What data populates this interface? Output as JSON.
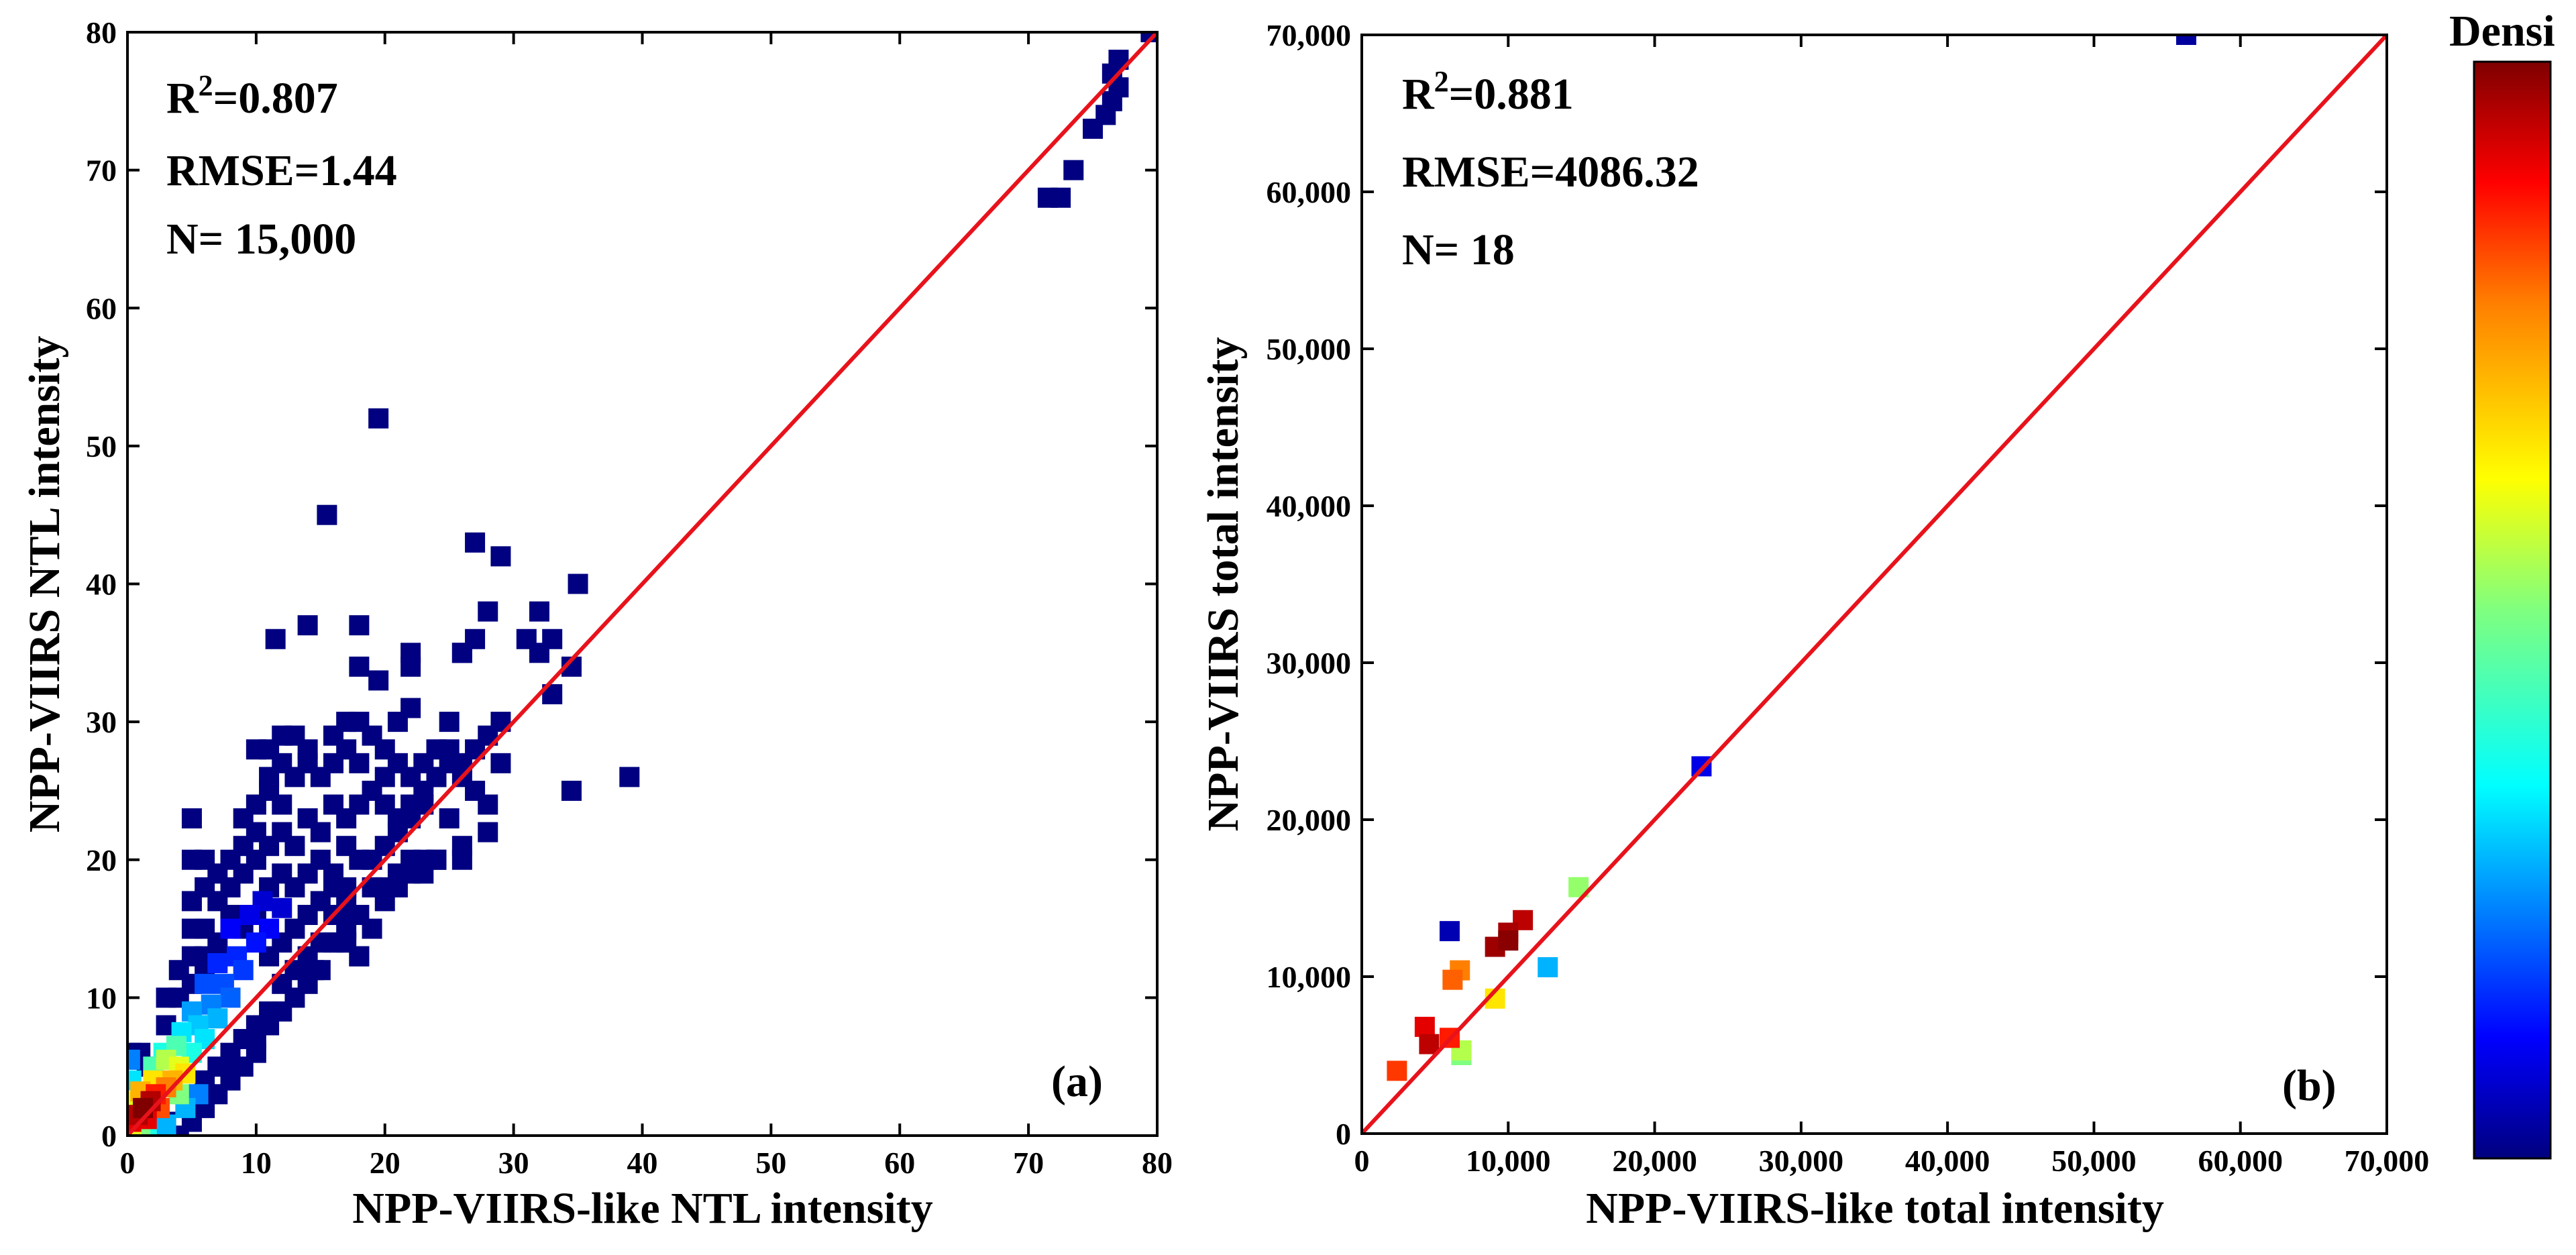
{
  "chart_data": [
    {
      "panel": "(a)",
      "type": "scatter",
      "subtype": "density",
      "xlabel": "NPP-VIIRS-like NTL intensity",
      "ylabel": "NPP-VIIRS NTL intensity",
      "xlim": [
        0,
        80
      ],
      "ylim": [
        0,
        80
      ],
      "xticks": [
        0,
        10,
        20,
        30,
        40,
        50,
        60,
        70,
        80
      ],
      "yticks": [
        0,
        10,
        20,
        30,
        40,
        50,
        60,
        70,
        80
      ],
      "xtick_labels": [
        "0",
        "10",
        "20",
        "30",
        "40",
        "50",
        "60",
        "70",
        "80"
      ],
      "ytick_labels": [
        "0",
        "10",
        "20",
        "30",
        "40",
        "50",
        "60",
        "70",
        "80"
      ],
      "stats": {
        "r2_prefix": "R",
        "r2_sup": "2",
        "r2_value": "=0.807",
        "rmse": "RMSE=1.44",
        "n": "N= 15,000"
      },
      "fit_line": [
        [
          0,
          0
        ],
        [
          80,
          80
        ]
      ],
      "fit_line_color": "#e8121b",
      "points": [
        [
          0.3,
          1,
          0.9
        ],
        [
          0.8,
          1.5,
          0.95
        ],
        [
          1.2,
          2,
          1.0
        ],
        [
          1.5,
          1.2,
          0.9
        ],
        [
          1.8,
          2.5,
          0.95
        ],
        [
          2.2,
          3,
          0.85
        ],
        [
          1,
          3.2,
          0.7
        ],
        [
          0.5,
          2.5,
          0.6
        ],
        [
          2.5,
          2,
          0.8
        ],
        [
          3,
          3.5,
          0.75
        ],
        [
          2,
          4,
          0.65
        ],
        [
          3.5,
          4,
          0.7
        ],
        [
          4,
          5,
          0.6
        ],
        [
          3,
          5.5,
          0.55
        ],
        [
          4.5,
          4.5,
          0.65
        ],
        [
          0.3,
          4,
          0.35
        ],
        [
          0.2,
          5.5,
          0.25
        ],
        [
          0.3,
          0.3,
          0.6
        ],
        [
          1,
          0.5,
          0.5
        ],
        [
          2.8,
          6,
          0.4
        ],
        [
          3.8,
          6.5,
          0.45
        ],
        [
          5,
          6,
          0.4
        ],
        [
          4.2,
          7.5,
          0.35
        ],
        [
          5.5,
          8,
          0.32
        ],
        [
          6,
          7,
          0.35
        ],
        [
          5,
          9,
          0.28
        ],
        [
          6.5,
          9.5,
          0.25
        ],
        [
          7,
          8.5,
          0.3
        ],
        [
          6,
          11,
          0.2
        ],
        [
          7.5,
          11,
          0.2
        ],
        [
          8,
          10,
          0.22
        ],
        [
          7,
          12.5,
          0.16
        ],
        [
          8.5,
          13,
          0.16
        ],
        [
          9,
          12,
          0.18
        ],
        [
          10,
          14,
          0.14
        ],
        [
          8,
          15,
          0.12
        ],
        [
          9.5,
          16,
          0.1
        ],
        [
          11,
          15,
          0.12
        ],
        [
          10.5,
          17,
          0.08
        ],
        [
          12,
          16.5,
          0.08
        ],
        [
          1.5,
          0.3,
          0.4
        ],
        [
          3,
          0.8,
          0.3
        ],
        [
          4.5,
          2,
          0.3
        ],
        [
          5.5,
          3,
          0.25
        ],
        [
          2,
          5,
          0.45
        ],
        [
          4,
          3,
          0.5
        ],
        [
          1,
          0,
          0
        ],
        [
          2,
          0,
          0
        ],
        [
          3,
          1,
          0
        ],
        [
          4,
          0,
          0
        ],
        [
          5,
          1,
          0
        ],
        [
          5,
          2,
          0
        ],
        [
          6,
          2,
          0
        ],
        [
          6,
          4,
          0
        ],
        [
          7,
          3,
          0
        ],
        [
          8,
          4,
          0
        ],
        [
          9,
          5,
          0
        ],
        [
          8,
          6,
          0
        ],
        [
          10,
          6,
          0
        ],
        [
          10,
          7,
          0
        ],
        [
          11,
          8,
          0
        ],
        [
          12,
          9,
          0
        ],
        [
          12,
          11,
          0
        ],
        [
          13,
          10,
          0
        ],
        [
          13,
          12,
          0
        ],
        [
          14,
          11,
          0
        ],
        [
          14,
          13,
          0
        ],
        [
          15,
          12,
          0
        ],
        [
          15,
          14,
          0
        ],
        [
          16,
          14,
          0
        ],
        [
          16,
          16,
          0
        ],
        [
          17,
          15,
          0
        ],
        [
          17,
          18,
          0
        ],
        [
          18,
          16,
          0
        ],
        [
          18,
          13,
          0
        ],
        [
          19,
          18,
          0
        ],
        [
          19,
          20,
          0
        ],
        [
          20,
          17,
          0
        ],
        [
          20,
          21,
          0
        ],
        [
          21,
          18,
          0
        ],
        [
          21,
          23,
          0
        ],
        [
          22,
          20,
          0
        ],
        [
          22,
          24,
          0
        ],
        [
          23,
          19,
          0
        ],
        [
          23,
          25,
          0
        ],
        [
          24,
          20,
          0
        ],
        [
          24,
          26,
          0
        ],
        [
          25,
          23,
          0
        ],
        [
          25,
          28,
          0
        ],
        [
          26,
          21,
          0
        ],
        [
          26,
          27,
          0
        ],
        [
          27,
          25,
          0
        ],
        [
          27,
          28,
          0
        ],
        [
          28,
          22,
          0
        ],
        [
          28,
          29,
          0
        ],
        [
          29,
          30,
          0
        ],
        [
          26,
          35,
          0
        ],
        [
          27,
          36,
          0
        ],
        [
          27,
          43,
          0
        ],
        [
          28,
          38,
          0
        ],
        [
          29,
          42,
          0
        ],
        [
          31,
          36,
          0
        ],
        [
          32,
          35,
          0
        ],
        [
          32,
          38,
          0
        ],
        [
          33,
          32,
          0
        ],
        [
          33,
          36,
          0
        ],
        [
          34.5,
          34,
          0
        ],
        [
          35,
          40,
          0
        ],
        [
          34.5,
          25,
          0
        ],
        [
          39,
          26,
          0
        ],
        [
          20,
          18,
          0
        ],
        [
          21,
          19,
          0
        ],
        [
          22,
          19,
          0
        ],
        [
          23,
          20,
          0
        ],
        [
          24,
          20,
          0
        ],
        [
          17,
          14,
          0
        ],
        [
          16.5,
          14,
          0
        ],
        [
          14.5,
          12,
          0
        ],
        [
          18,
          13,
          0
        ],
        [
          19,
          15,
          0
        ],
        [
          17,
          16,
          0
        ],
        [
          19.5,
          52,
          0
        ],
        [
          15.5,
          45,
          0
        ],
        [
          11.5,
          36,
          0
        ],
        [
          14,
          37,
          0
        ],
        [
          18,
          37,
          0
        ],
        [
          18,
          34,
          0
        ],
        [
          19.5,
          33,
          0
        ],
        [
          22,
          34,
          0
        ],
        [
          22,
          35,
          0
        ],
        [
          26,
          35,
          0
        ],
        [
          25,
          30,
          0
        ],
        [
          21,
          30,
          0
        ],
        [
          22,
          31,
          0
        ],
        [
          18,
          30,
          0
        ],
        [
          17,
          30,
          0
        ],
        [
          16,
          29,
          0
        ],
        [
          12,
          29,
          0
        ],
        [
          13,
          29,
          0
        ],
        [
          14,
          28,
          0
        ],
        [
          10,
          28,
          0
        ],
        [
          11,
          28,
          0
        ],
        [
          11,
          26,
          0
        ],
        [
          12,
          27,
          0
        ],
        [
          10,
          24,
          0
        ],
        [
          11,
          25,
          0
        ],
        [
          12,
          24,
          0
        ],
        [
          13,
          26,
          0
        ],
        [
          14,
          27,
          0
        ],
        [
          15,
          26,
          0
        ],
        [
          16,
          27,
          0
        ],
        [
          17,
          28,
          0
        ],
        [
          18,
          27,
          0
        ],
        [
          19,
          29,
          0
        ],
        [
          20,
          28,
          0
        ],
        [
          20,
          26,
          0
        ],
        [
          21,
          27,
          0
        ],
        [
          22,
          26,
          0
        ],
        [
          23,
          27,
          0
        ],
        [
          24,
          26,
          0
        ],
        [
          24,
          28,
          0
        ],
        [
          25,
          27,
          0
        ],
        [
          26,
          26,
          0
        ],
        [
          9,
          23,
          0
        ],
        [
          10,
          22,
          0
        ],
        [
          11,
          21,
          0
        ],
        [
          12,
          22,
          0
        ],
        [
          13,
          21,
          0
        ],
        [
          14,
          23,
          0
        ],
        [
          15,
          22,
          0
        ],
        [
          16,
          24,
          0
        ],
        [
          17,
          23,
          0
        ],
        [
          18,
          24,
          0
        ],
        [
          19,
          25,
          0
        ],
        [
          20,
          24,
          0
        ],
        [
          21,
          22,
          0
        ],
        [
          22,
          23,
          0
        ],
        [
          23,
          24,
          0
        ],
        [
          5,
          23,
          0
        ],
        [
          5,
          20,
          0
        ],
        [
          6,
          20,
          0
        ],
        [
          6,
          18,
          0
        ],
        [
          7,
          19,
          0
        ],
        [
          7,
          17,
          0
        ],
        [
          8,
          20,
          0
        ],
        [
          8,
          18,
          0
        ],
        [
          9,
          19,
          0
        ],
        [
          9,
          21,
          0
        ],
        [
          10,
          20,
          0
        ],
        [
          11,
          18,
          0
        ],
        [
          12,
          19,
          0
        ],
        [
          13,
          18,
          0
        ],
        [
          14,
          19,
          0
        ],
        [
          15,
          20,
          0
        ],
        [
          16,
          19,
          0
        ],
        [
          17,
          21,
          0
        ],
        [
          18,
          20,
          0
        ],
        [
          5,
          17,
          0
        ],
        [
          5,
          15,
          0
        ],
        [
          6,
          15,
          0
        ],
        [
          6,
          13,
          0
        ],
        [
          7,
          14,
          0
        ],
        [
          8,
          16,
          0
        ],
        [
          9,
          15,
          0
        ],
        [
          10,
          16,
          0
        ],
        [
          11,
          13,
          0
        ],
        [
          12,
          14,
          0
        ],
        [
          13,
          15,
          0
        ],
        [
          14,
          16,
          0
        ],
        [
          15,
          17,
          0
        ],
        [
          16,
          18,
          0
        ],
        [
          17,
          17,
          0
        ],
        [
          4,
          12,
          0
        ],
        [
          4,
          10,
          0
        ],
        [
          5,
          11,
          0
        ],
        [
          5,
          13,
          0
        ],
        [
          6,
          12,
          0
        ],
        [
          7,
          13,
          0
        ],
        [
          3,
          8,
          0
        ],
        [
          3,
          10,
          0
        ],
        [
          0.3,
          6,
          0
        ],
        [
          1,
          6,
          0
        ],
        [
          1.5,
          5,
          0
        ],
        [
          9,
          7,
          0
        ],
        [
          10,
          8,
          0
        ],
        [
          11,
          9,
          0
        ],
        [
          7,
          5,
          0
        ],
        [
          8,
          5,
          0
        ],
        [
          6,
          3,
          0
        ],
        [
          26,
          20,
          0
        ],
        [
          28,
          24,
          0
        ],
        [
          29,
          27,
          0
        ],
        [
          71.5,
          68,
          0
        ],
        [
          72.5,
          68,
          0
        ],
        [
          73.5,
          70,
          0
        ],
        [
          75,
          73,
          0
        ],
        [
          76,
          74,
          0
        ],
        [
          76.5,
          75,
          0
        ],
        [
          77,
          76,
          0
        ],
        [
          76.5,
          77,
          0
        ],
        [
          77,
          78,
          0
        ],
        [
          79.5,
          80,
          0
        ]
      ]
    },
    {
      "panel": "(b)",
      "type": "scatter",
      "subtype": "density",
      "xlabel": "NPP-VIIRS-like total intensity",
      "ylabel": "NPP-VIIRS total intensity",
      "xlim": [
        0,
        70000
      ],
      "ylim": [
        0,
        70000
      ],
      "xticks": [
        0,
        10000,
        20000,
        30000,
        40000,
        50000,
        60000,
        70000
      ],
      "yticks": [
        0,
        10000,
        20000,
        30000,
        40000,
        50000,
        60000,
        70000
      ],
      "xtick_labels": [
        "0",
        "10,000",
        "20,000",
        "30,000",
        "40,000",
        "50,000",
        "60,000",
        "70,000"
      ],
      "ytick_labels": [
        "0",
        "10,000",
        "20,000",
        "30,000",
        "40,000",
        "50,000",
        "60,000",
        "70,000"
      ],
      "stats": {
        "r2_prefix": "R",
        "r2_sup": "2",
        "r2_value": "=0.881",
        "rmse": "RMSE=4086.32",
        "n": "N= 18"
      },
      "fit_line": [
        [
          0,
          0
        ],
        [
          70000,
          70000
        ]
      ],
      "fit_line_color": "#e8121b",
      "points": [
        [
          2400,
          4000,
          0.82
        ],
        [
          4300,
          6800,
          0.9
        ],
        [
          4600,
          5700,
          0.94
        ],
        [
          6000,
          6100,
          0.85
        ],
        [
          6800,
          5300,
          0.55
        ],
        [
          6800,
          5000,
          0.5
        ],
        [
          6200,
          9800,
          0.78
        ],
        [
          6700,
          10400,
          0.75
        ],
        [
          6000,
          12900,
          0.05
        ],
        [
          9100,
          8600,
          0.65
        ],
        [
          9100,
          11900,
          0.97
        ],
        [
          10000,
          12800,
          0.96
        ],
        [
          11000,
          13600,
          0.94
        ],
        [
          10000,
          12300,
          0.99
        ],
        [
          12700,
          10600,
          0.3
        ],
        [
          14800,
          15700,
          0.52
        ],
        [
          23200,
          23400,
          0.1
        ],
        [
          56300,
          70000,
          0.03
        ]
      ]
    }
  ],
  "colorbar": {
    "label": "Density",
    "label_visible": "Densi",
    "colors": [
      "#00007f",
      "#0000ff",
      "#007fff",
      "#00ffff",
      "#7fff7f",
      "#ffff00",
      "#ff7f00",
      "#ff0000",
      "#7f0000"
    ]
  }
}
